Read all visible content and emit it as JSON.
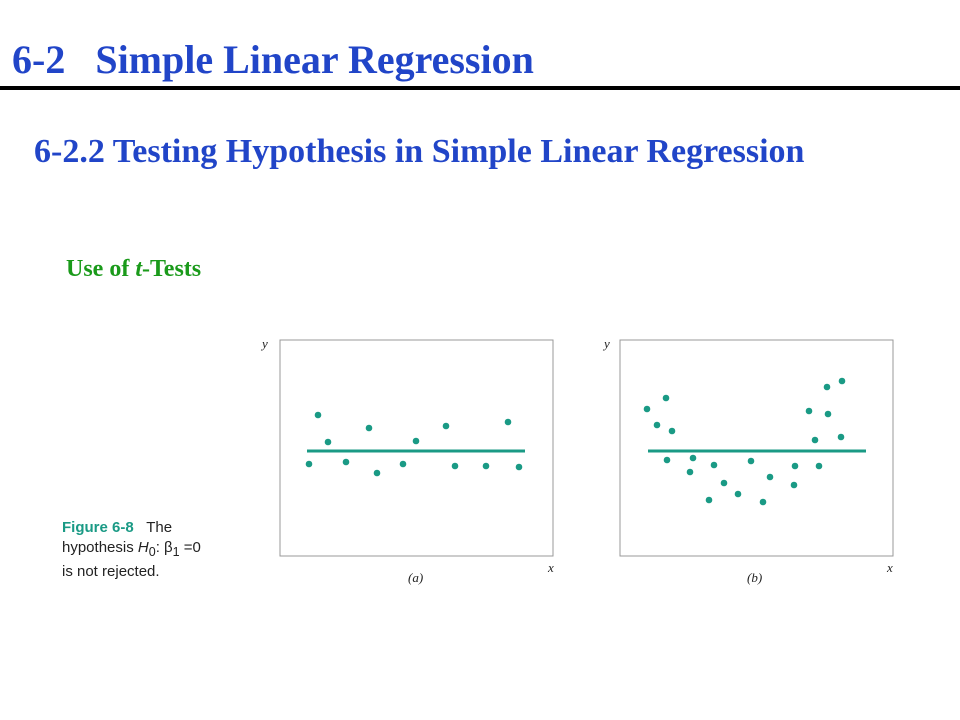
{
  "header": {
    "title": "6-2   Simple Linear Regression"
  },
  "section": {
    "title": "6-2.2 Testing Hypothesis in Simple Linear Regression",
    "subtitle": {
      "before": "Use of ",
      "italic": "t",
      "after": "-Tests"
    }
  },
  "figure": {
    "panels": [
      {
        "y_label": "y",
        "x_label": "x",
        "caption": "(a)"
      },
      {
        "y_label": "y",
        "x_label": "x",
        "caption": "(b)"
      }
    ],
    "caption": {
      "label": "Figure 6-8",
      "text1": "The",
      "text2": "hypothesis ",
      "h": "H",
      "h_sub": "0",
      "text3": ": β",
      "beta_sub": "1",
      "text4": " =0",
      "text5": "is not rejected."
    }
  }
}
